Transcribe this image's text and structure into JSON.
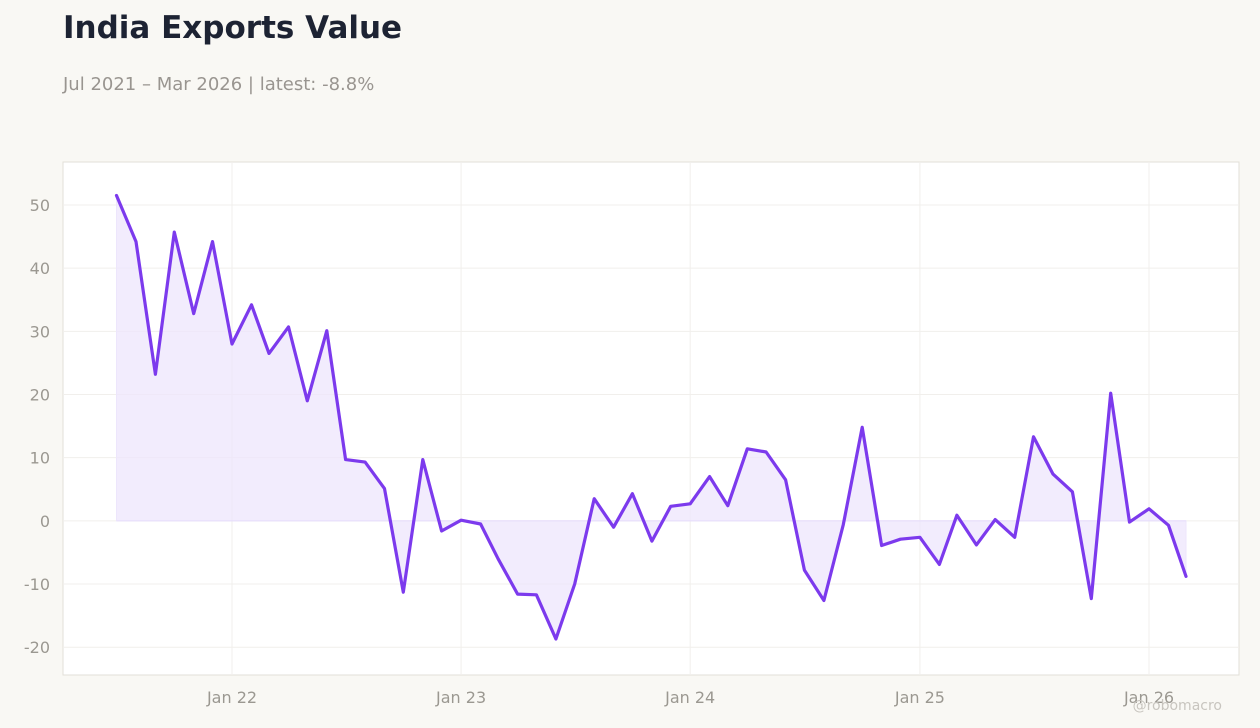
{
  "header": {
    "title": "India Exports Value",
    "subtitle": "Jul 2021 – Mar 2026 | latest: -8.8%"
  },
  "watermark": "@robomacro",
  "colors": {
    "line": "#7c3aed",
    "fill": "#ede6fc",
    "plot_background": "#ffffff",
    "plot_border": "#e2dfd8",
    "grid": "#f1efec",
    "page_background": "#f9f8f4"
  },
  "chart_data": {
    "type": "area",
    "x": [
      "2021-07",
      "2021-08",
      "2021-09",
      "2021-10",
      "2021-11",
      "2021-12",
      "2022-01",
      "2022-02",
      "2022-03",
      "2022-04",
      "2022-05",
      "2022-06",
      "2022-07",
      "2022-08",
      "2022-09",
      "2022-10",
      "2022-11",
      "2022-12",
      "2023-01",
      "2023-02",
      "2023-03",
      "2023-04",
      "2023-05",
      "2023-06",
      "2023-07",
      "2023-08",
      "2023-09",
      "2023-10",
      "2023-11",
      "2023-12",
      "2024-01",
      "2024-02",
      "2024-03",
      "2024-04",
      "2024-05",
      "2024-06",
      "2024-07",
      "2024-08",
      "2024-09",
      "2024-10",
      "2024-11",
      "2024-12",
      "2025-01",
      "2025-02",
      "2025-03",
      "2025-04",
      "2025-05",
      "2025-06",
      "2025-07",
      "2025-08",
      "2025-09",
      "2025-10",
      "2025-11",
      "2025-12",
      "2026-01",
      "2026-02",
      "2026-03"
    ],
    "series": [
      {
        "values": [
          51.5,
          44.2,
          23.2,
          45.7,
          32.8,
          44.2,
          28.0,
          34.2,
          26.5,
          30.7,
          19.0,
          30.1,
          9.7,
          9.3,
          5.1,
          -11.3,
          9.7,
          -1.6,
          0.1,
          -0.5,
          -6.0,
          -11.6,
          -11.7,
          -18.7,
          -10.0,
          3.5,
          -1.0,
          4.3,
          -3.2,
          2.3,
          2.7,
          7.0,
          2.4,
          11.4,
          10.9,
          6.5,
          -7.8,
          -12.6,
          -0.6,
          14.8,
          -3.9,
          -2.9,
          -2.6,
          -6.9,
          0.9,
          -3.8,
          0.2,
          -2.6,
          13.3,
          7.4,
          4.6,
          -12.3,
          20.2,
          -0.2,
          1.9,
          -0.7,
          -8.8
        ]
      }
    ],
    "x_ticks": [
      "Jan 22",
      "Jan 23",
      "Jan 24",
      "Jan 25",
      "Jan 26"
    ],
    "y_ticks": [
      50,
      40,
      30,
      20,
      10,
      0,
      -10,
      -20
    ],
    "ylim": [
      -24.4,
      56.8
    ],
    "grid": true,
    "legend": "none",
    "title": "India Exports Value",
    "subtitle": "Jul 2021 – Mar 2026 | latest: -8.8%"
  }
}
